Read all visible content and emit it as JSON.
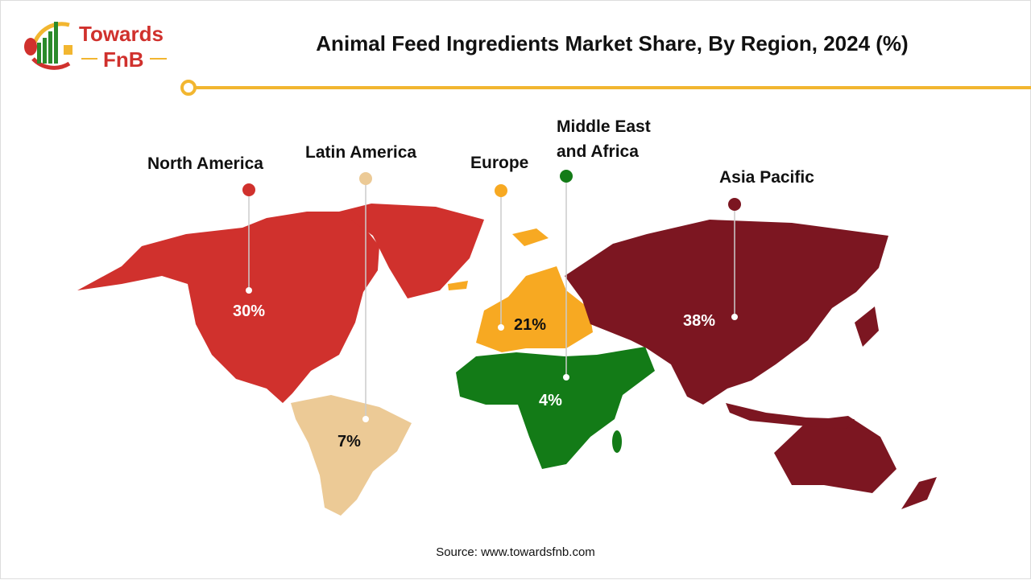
{
  "logo": {
    "text_top": "Towards",
    "text_bottom": "FnB"
  },
  "title": "Animal Feed Ingredients Market Share, By Region, 2024 (%)",
  "regions": [
    {
      "name": "North America",
      "share": "30%",
      "color": "#d0312d"
    },
    {
      "name": "Latin America",
      "share": "7%",
      "color": "#ecca96"
    },
    {
      "name": "Europe",
      "share": "21%",
      "color": "#f7a922"
    },
    {
      "name_line1": "Middle East",
      "name_line2": "and Africa",
      "share": "4%",
      "color": "#137b17"
    },
    {
      "name": "Asia Pacific",
      "share": "38%",
      "color": "#7c1621"
    }
  ],
  "source": "Source: www.towardsfnb.com",
  "accent": "#f2b630"
}
